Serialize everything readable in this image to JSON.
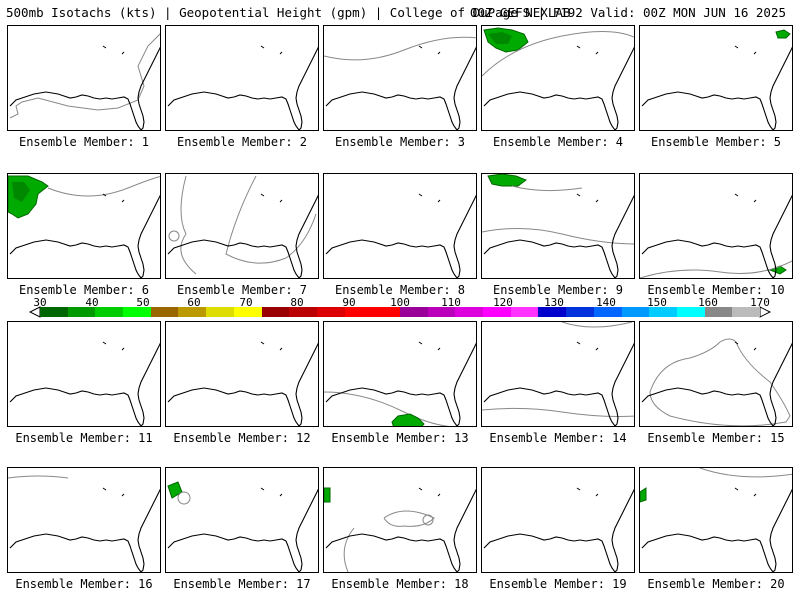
{
  "header": {
    "left": "500mb Isotachs (kts) | Geopotential Height (gpm) | College of DuPage NEXLAB",
    "right": "00Z GEFS | F192 Valid: 00Z MON JUN 16 2025"
  },
  "colorbar": {
    "ticks": [
      "30",
      "40",
      "50",
      "60",
      "70",
      "80",
      "90",
      "100",
      "110",
      "120",
      "130",
      "140",
      "150",
      "160",
      "170"
    ],
    "colors": [
      "#006600",
      "#009900",
      "#00cc00",
      "#00ff00",
      "#996600",
      "#bb9900",
      "#dddd00",
      "#ffff00",
      "#990000",
      "#bb0000",
      "#dd0000",
      "#ff0000",
      "#ff0000",
      "#990099",
      "#bb00bb",
      "#dd00dd",
      "#ff00ff",
      "#ff33ff",
      "#0000cc",
      "#0033dd",
      "#0066ff",
      "#0099ff",
      "#00ccff",
      "#00ffff",
      "#888888",
      "#bbbbbb"
    ]
  },
  "panels": [
    {
      "label": "Ensemble Member: 1"
    },
    {
      "label": "Ensemble Member: 2"
    },
    {
      "label": "Ensemble Member: 3"
    },
    {
      "label": "Ensemble Member: 4"
    },
    {
      "label": "Ensemble Member: 5"
    },
    {
      "label": "Ensemble Member: 6"
    },
    {
      "label": "Ensemble Member: 7"
    },
    {
      "label": "Ensemble Member: 8"
    },
    {
      "label": "Ensemble Member: 9"
    },
    {
      "label": "Ensemble Member: 10"
    },
    {
      "label": "Ensemble Member: 11"
    },
    {
      "label": "Ensemble Member: 12"
    },
    {
      "label": "Ensemble Member: 13"
    },
    {
      "label": "Ensemble Member: 14"
    },
    {
      "label": "Ensemble Member: 15"
    },
    {
      "label": "Ensemble Member: 16"
    },
    {
      "label": "Ensemble Member: 17"
    },
    {
      "label": "Ensemble Member: 18"
    },
    {
      "label": "Ensemble Member: 19"
    },
    {
      "label": "Ensemble Member: 20"
    }
  ]
}
